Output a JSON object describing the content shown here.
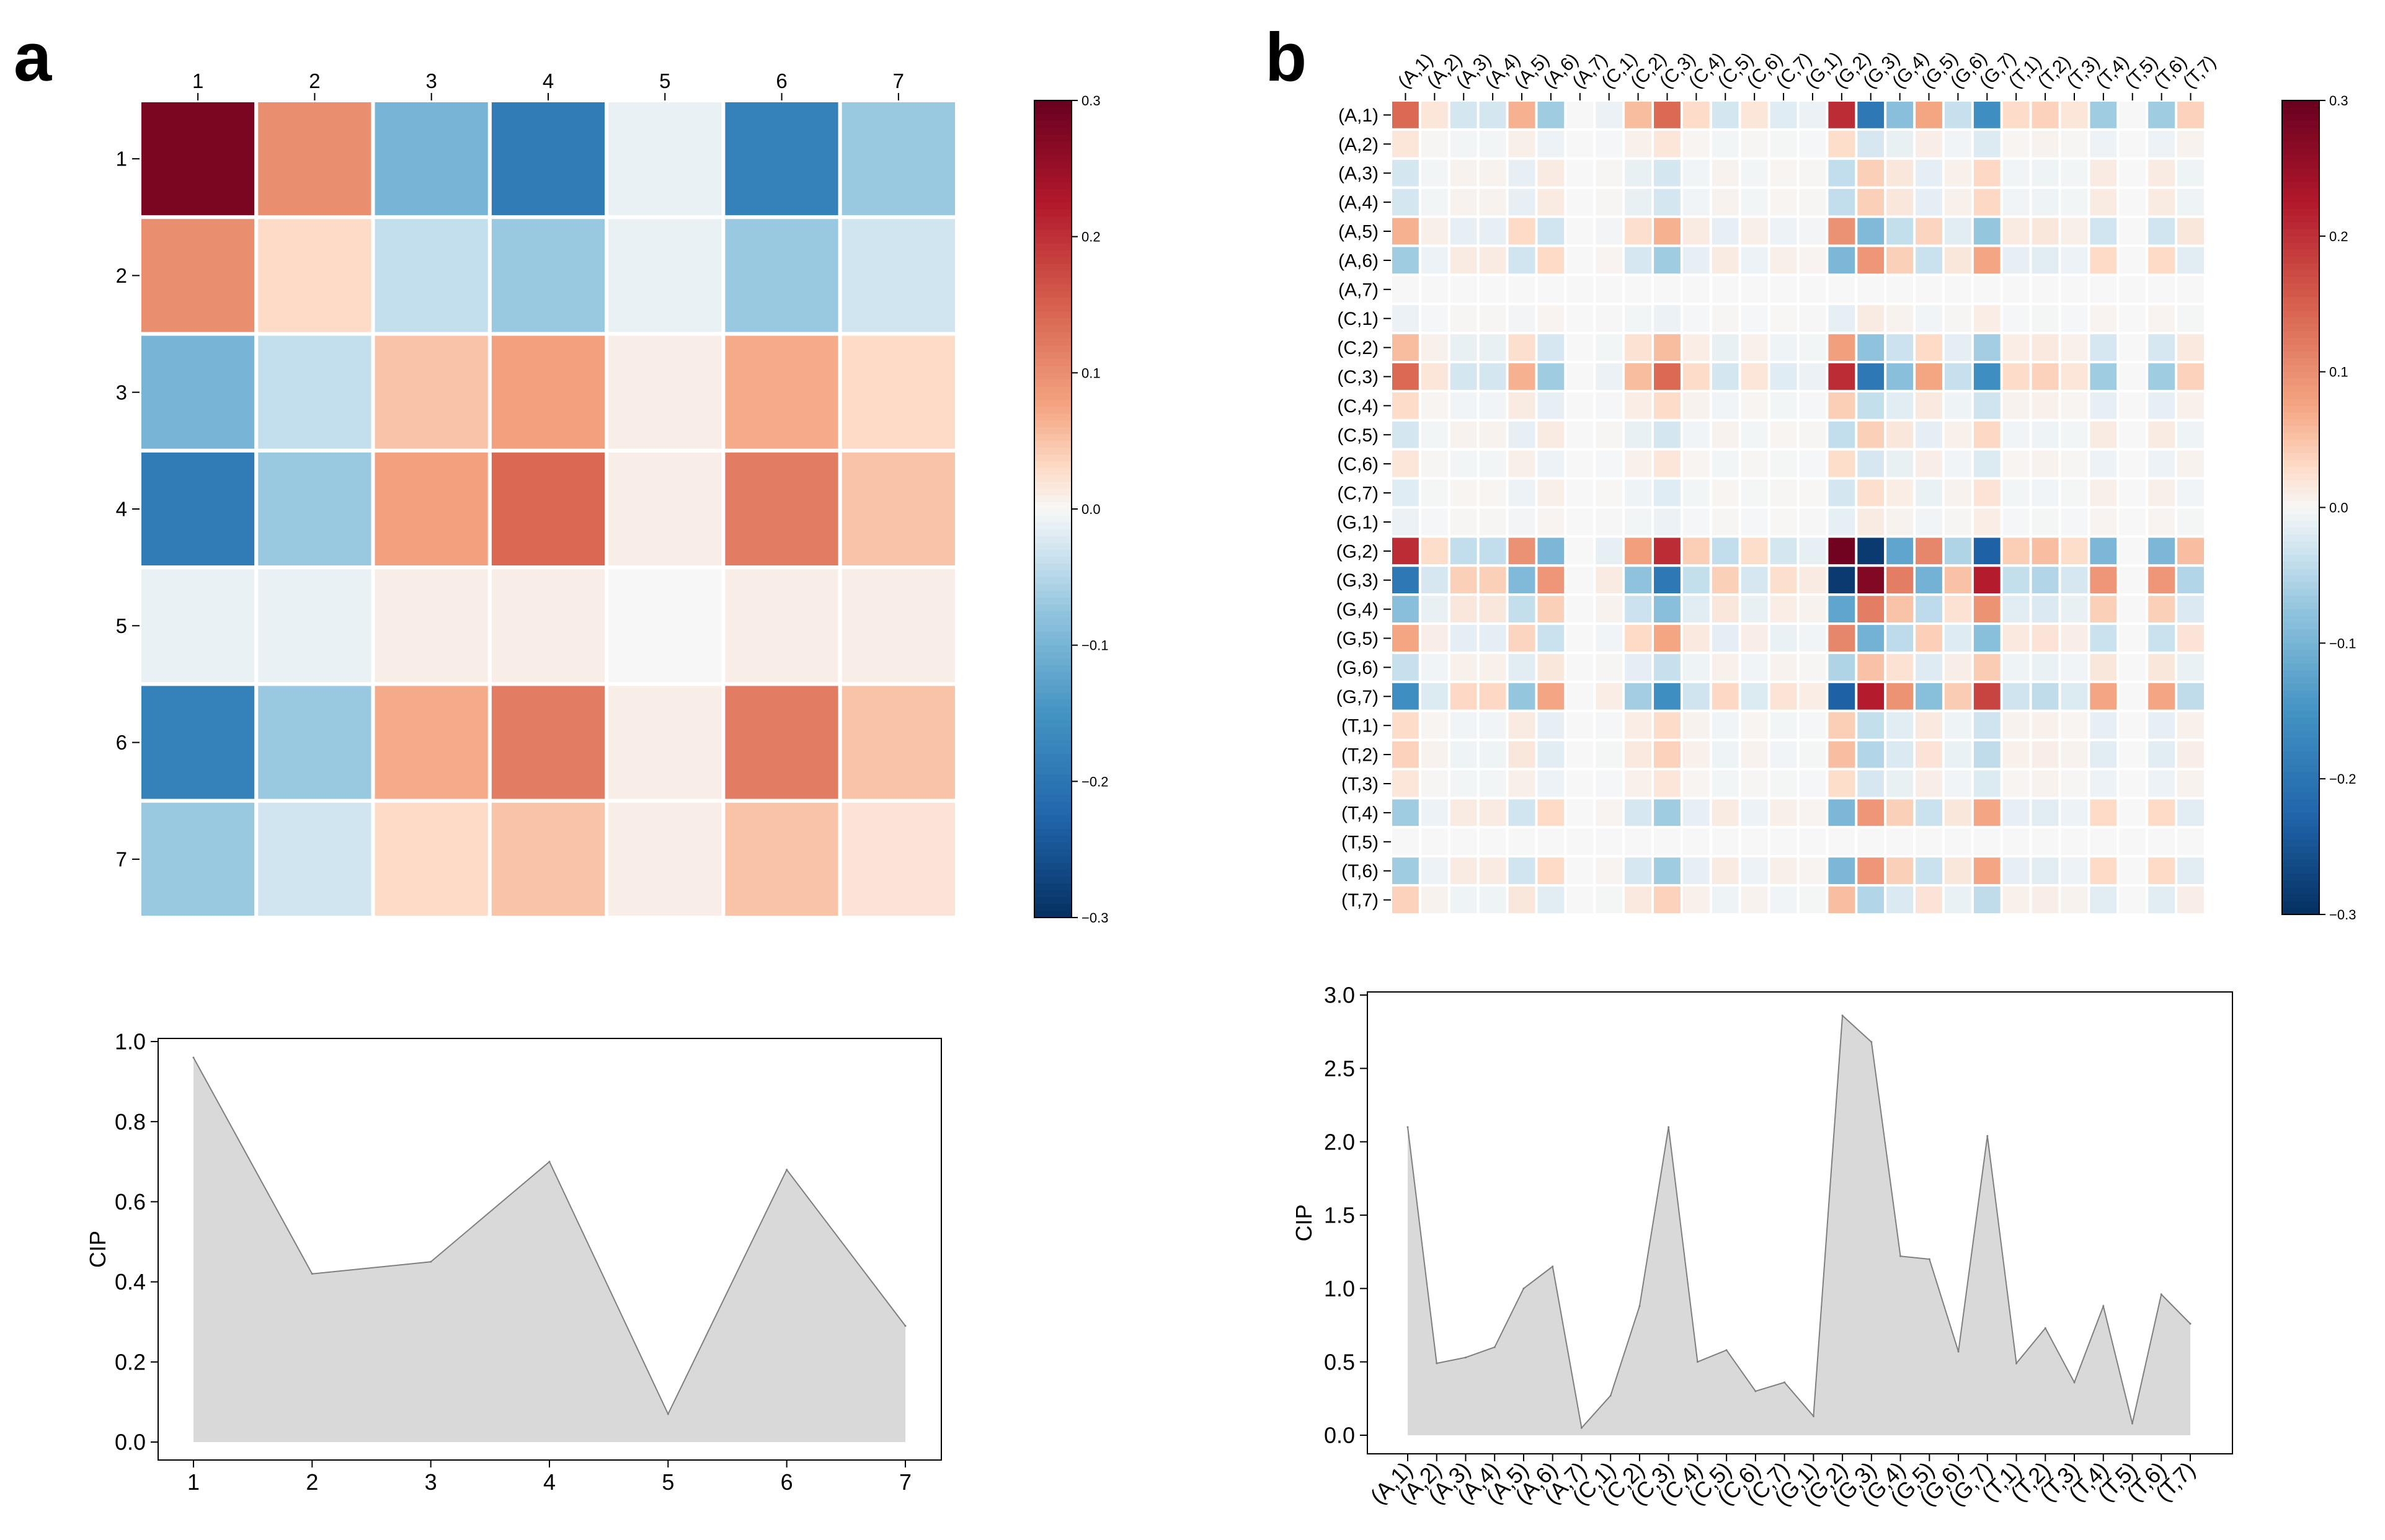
{
  "panels": {
    "a": "a",
    "b": "b"
  },
  "colors": {
    "area_fill": "#d9d9d9",
    "area_line": "#7f7f7f",
    "grid_line": "#ffffff"
  },
  "chart_data": [
    {
      "id": "a-heatmap",
      "type": "heatmap",
      "labels": [
        "1",
        "2",
        "3",
        "4",
        "5",
        "6",
        "7"
      ],
      "matrix": [
        [
          0.28,
          0.1,
          -0.1,
          -0.19,
          -0.01,
          -0.18,
          -0.07
        ],
        [
          0.1,
          0.03,
          -0.04,
          -0.07,
          -0.01,
          -0.07,
          -0.03
        ],
        [
          -0.1,
          -0.04,
          0.05,
          0.08,
          0.01,
          0.07,
          0.03
        ],
        [
          -0.19,
          -0.07,
          0.08,
          0.14,
          0.01,
          0.12,
          0.05
        ],
        [
          -0.01,
          -0.01,
          0.01,
          0.01,
          0.0,
          0.01,
          0.01
        ],
        [
          -0.18,
          -0.07,
          0.07,
          0.12,
          0.01,
          0.12,
          0.05
        ],
        [
          -0.07,
          -0.03,
          0.03,
          0.05,
          0.01,
          0.05,
          0.02
        ]
      ],
      "colorbar": {
        "min": -0.3,
        "max": 0.3,
        "ticks": [
          "0.3",
          "0.2",
          "0.1",
          "0.0",
          "−0.1",
          "−0.2",
          "−0.3"
        ],
        "colormap": "RdBu_r"
      }
    },
    {
      "id": "a-area",
      "type": "area",
      "x": [
        "1",
        "2",
        "3",
        "4",
        "5",
        "6",
        "7"
      ],
      "values": [
        0.96,
        0.42,
        0.45,
        0.7,
        0.07,
        0.68,
        0.29
      ],
      "ylabel": "CIP",
      "ylim": [
        0,
        1.0
      ],
      "yticks": [
        "0.0",
        "0.2",
        "0.4",
        "0.6",
        "0.8",
        "1.0"
      ]
    },
    {
      "id": "b-heatmap",
      "type": "heatmap",
      "labels": [
        "(A,1)",
        "(A,2)",
        "(A,3)",
        "(A,4)",
        "(A,5)",
        "(A,6)",
        "(A,7)",
        "(C,1)",
        "(C,2)",
        "(C,3)",
        "(C,4)",
        "(C,5)",
        "(C,6)",
        "(C,7)",
        "(G,1)",
        "(G,2)",
        "(G,3)",
        "(G,4)",
        "(G,5)",
        "(G,6)",
        "(G,7)",
        "(T,1)",
        "(T,2)",
        "(T,3)",
        "(T,4)",
        "(T,5)",
        "(T,6)",
        "(T,7)"
      ],
      "profile": [
        0.15,
        0.02,
        -0.03,
        -0.03,
        0.07,
        -0.07,
        0.0,
        -0.01,
        0.06,
        0.15,
        0.03,
        -0.03,
        0.02,
        -0.02,
        -0.01,
        0.22,
        -0.21,
        -0.09,
        0.08,
        -0.04,
        -0.17,
        0.03,
        0.04,
        0.02,
        -0.07,
        0.0,
        -0.07,
        0.04
      ],
      "colorbar": {
        "min": -0.3,
        "max": 0.3,
        "ticks": [
          "0.3",
          "0.2",
          "0.1",
          "0.0",
          "−0.1",
          "−0.2",
          "−0.3"
        ],
        "colormap": "RdBu_r"
      }
    },
    {
      "id": "b-area",
      "type": "area",
      "x": [
        "(A,1)",
        "(A,2)",
        "(A,3)",
        "(A,4)",
        "(A,5)",
        "(A,6)",
        "(A,7)",
        "(C,1)",
        "(C,2)",
        "(C,3)",
        "(C,4)",
        "(C,5)",
        "(C,6)",
        "(C,7)",
        "(G,1)",
        "(G,2)",
        "(G,3)",
        "(G,4)",
        "(G,5)",
        "(G,6)",
        "(G,7)",
        "(T,1)",
        "(T,2)",
        "(T,3)",
        "(T,4)",
        "(T,5)",
        "(T,6)",
        "(T,7)"
      ],
      "values": [
        2.1,
        0.49,
        0.53,
        0.6,
        1.0,
        1.15,
        0.05,
        0.27,
        0.88,
        2.1,
        0.5,
        0.58,
        0.3,
        0.36,
        0.13,
        2.86,
        2.68,
        1.22,
        1.2,
        0.57,
        2.04,
        0.49,
        0.73,
        0.36,
        0.88,
        0.08,
        0.96,
        0.76
      ],
      "ylabel": "CIP",
      "ylim": [
        0,
        3.0
      ],
      "yticks": [
        "0.0",
        "0.5",
        "1.0",
        "1.5",
        "2.0",
        "2.5",
        "3.0"
      ]
    }
  ]
}
